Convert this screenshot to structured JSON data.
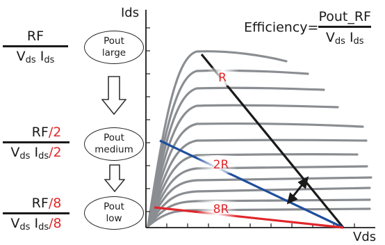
{
  "axes": {
    "y_label": "Ids",
    "x_label": "Vds"
  },
  "efficiency": {
    "label": "Efficiency",
    "equals": "=",
    "numerator": "Pout_RF",
    "denominator": {
      "v": "V",
      "v_sub": "ds",
      "i": "I",
      "i_sub": "ds"
    }
  },
  "rows": [
    {
      "numerator": {
        "base": "RF",
        "suffix": ""
      },
      "denominator": {
        "v": "V",
        "v_sub": "ds",
        "i": "I",
        "i_sub": "ds",
        "suffix": ""
      },
      "pout": {
        "line1": "Pout",
        "line2": "large"
      }
    },
    {
      "numerator": {
        "base": "RF",
        "suffix": "/2"
      },
      "denominator": {
        "v": "V",
        "v_sub": "ds",
        "i": "I",
        "i_sub": "ds",
        "suffix": "/2"
      },
      "pout": {
        "line1": "Pout",
        "line2": "medium"
      }
    },
    {
      "numerator": {
        "base": "RF",
        "suffix": "/8"
      },
      "denominator": {
        "v": "V",
        "v_sub": "ds",
        "i": "I",
        "i_sub": "ds",
        "suffix": "/8"
      },
      "pout": {
        "line1": "Pout",
        "line2": "low"
      }
    }
  ],
  "load_lines": [
    {
      "label": "R",
      "color": "#1a1a1a"
    },
    {
      "label": "2R",
      "color": "#1f4e9c"
    },
    {
      "label": "8R",
      "color": "#e0262b"
    }
  ],
  "colors": {
    "curve": "#8a8d91",
    "accent": "#e0262b",
    "text": "#1a1a1a"
  }
}
